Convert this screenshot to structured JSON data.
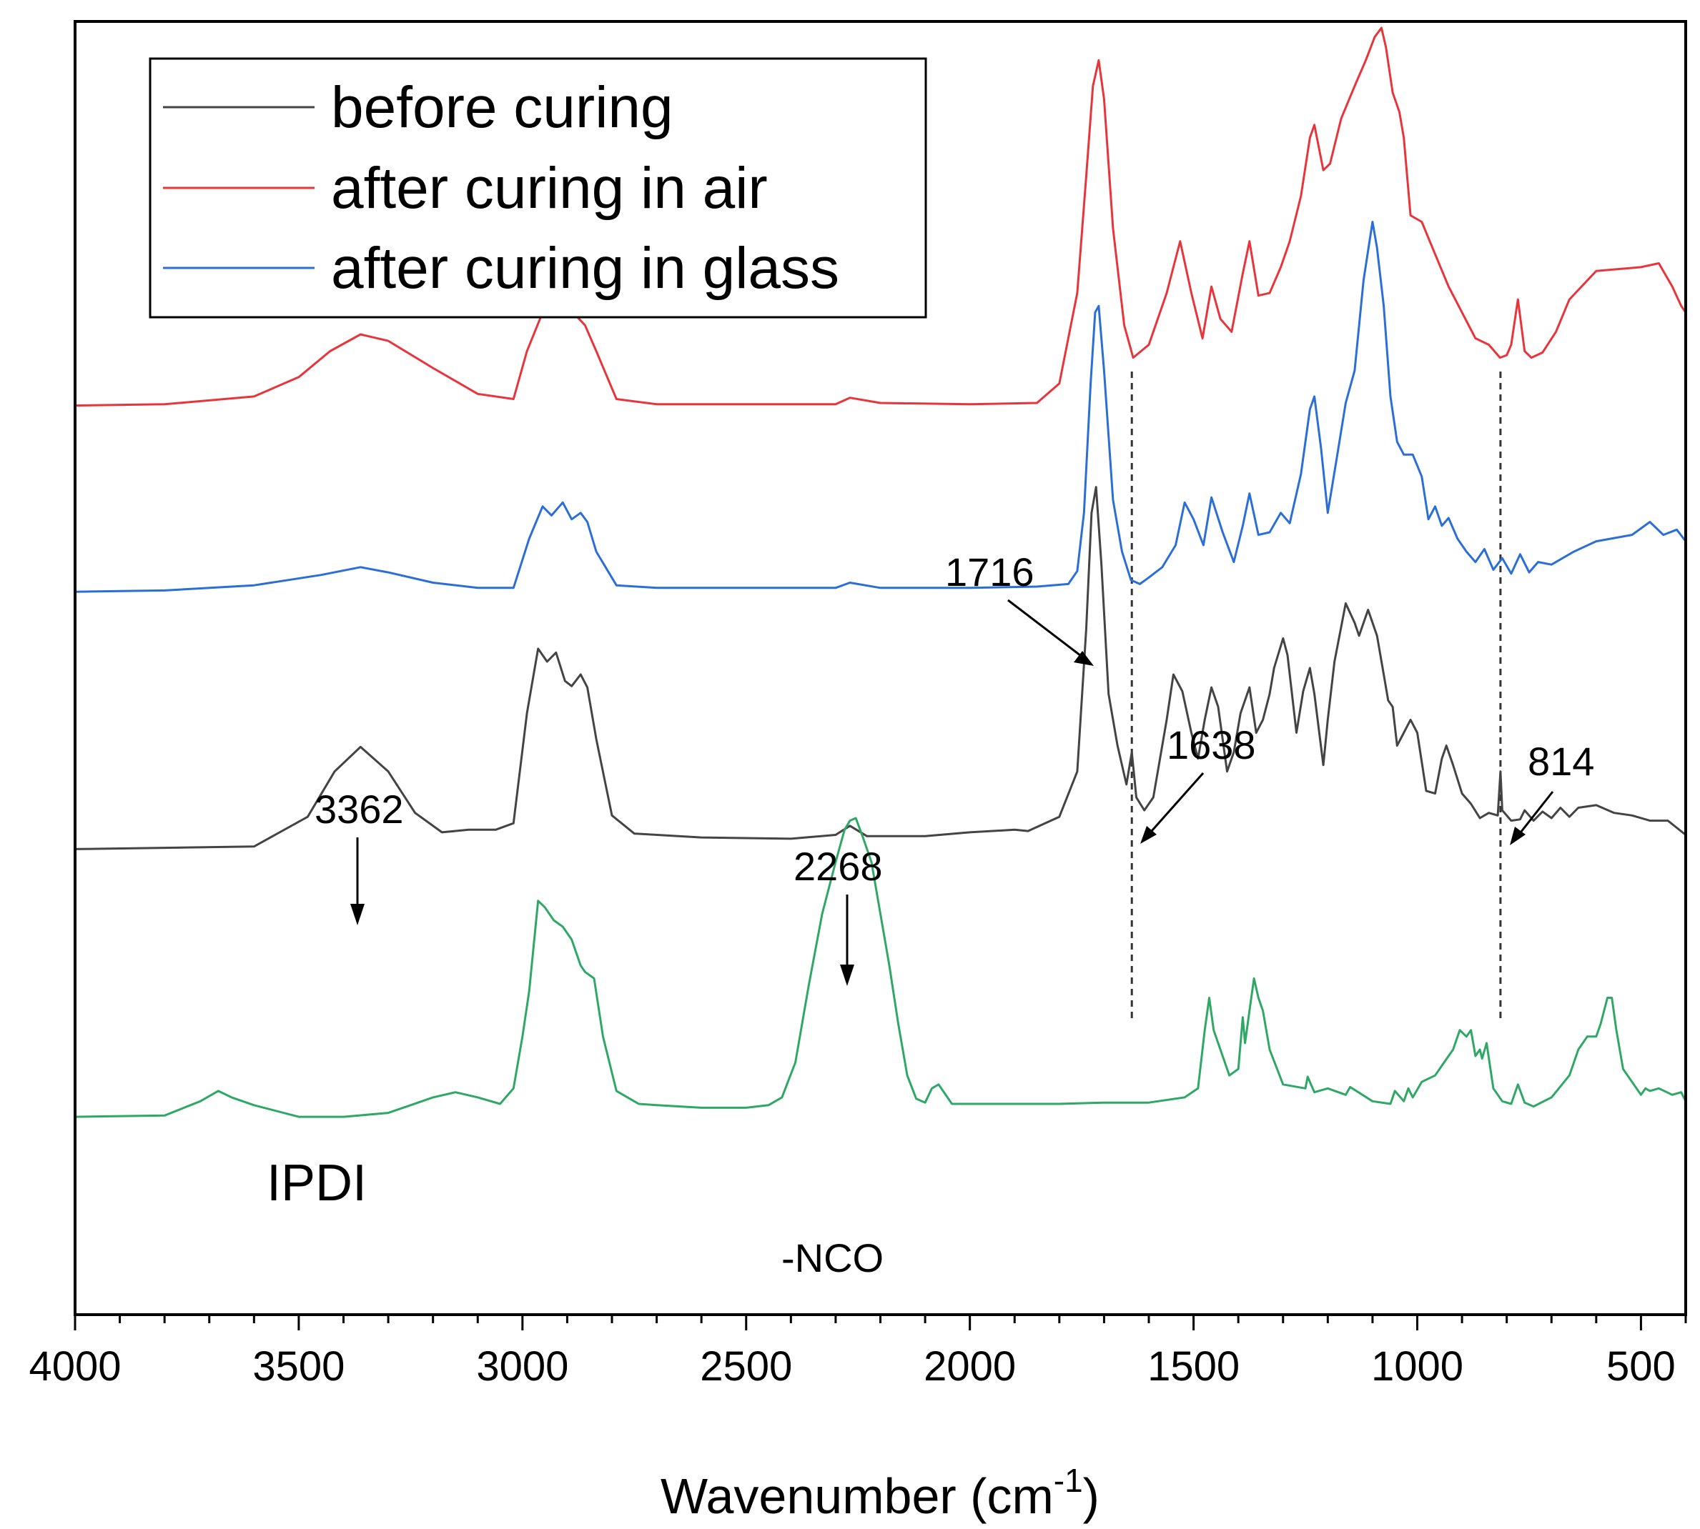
{
  "chart_data": {
    "type": "line",
    "title": "",
    "xlabel": "Wavenumber (cm",
    "xlabel_sup": "-1",
    "xlabel_close": ")",
    "ylabel": "",
    "xlim": [
      4000,
      400
    ],
    "x_reversed": true,
    "y_ticks_shown": false,
    "x_ticks": [
      4000,
      3500,
      3000,
      2500,
      2000,
      1500,
      1000,
      500
    ],
    "x_tick_labels": [
      "4000",
      "3500",
      "3000",
      "2500",
      "2000",
      "1500",
      "1000",
      "500"
    ],
    "y_range": [
      0,
      100
    ],
    "legend": {
      "position": "top-left",
      "entries": [
        {
          "label": "before curing",
          "color": "#444444"
        },
        {
          "label": "after curing in air",
          "color": "#e8353b"
        },
        {
          "label": "after curing in glass",
          "color": "#2b6fd6"
        }
      ]
    },
    "series": [
      {
        "name": "after curing in air",
        "color": "#e8353b",
        "x": [
          4000,
          3800,
          3600,
          3500,
          3430,
          3362,
          3300,
          3200,
          3100,
          3020,
          2990,
          2955,
          2925,
          2895,
          2860,
          2835,
          2790,
          2700,
          2500,
          2300,
          2268,
          2200,
          2000,
          1850,
          1800,
          1760,
          1740,
          1725,
          1712,
          1700,
          1680,
          1655,
          1635,
          1600,
          1560,
          1530,
          1505,
          1480,
          1460,
          1440,
          1415,
          1390,
          1375,
          1355,
          1330,
          1305,
          1285,
          1260,
          1240,
          1230,
          1210,
          1195,
          1170,
          1140,
          1115,
          1095,
          1080,
          1070,
          1055,
          1040,
          1030,
          1015,
          990,
          960,
          930,
          900,
          870,
          840,
          815,
          800,
          790,
          775,
          760,
          745,
          720,
          690,
          660,
          600,
          500,
          460,
          430,
          410,
          400
        ],
        "y": [
          70.3,
          70.4,
          71,
          72.5,
          74.5,
          75.8,
          75.3,
          73.2,
          71.2,
          70.8,
          74.5,
          77.5,
          79.5,
          77.8,
          76.5,
          74.5,
          70.8,
          70.4,
          70.4,
          70.4,
          70.9,
          70.5,
          70.4,
          70.5,
          72,
          79,
          88,
          95,
          97,
          94,
          84,
          76.5,
          74,
          75,
          79,
          83,
          79,
          75.5,
          79.5,
          77,
          76,
          80.5,
          83,
          78.8,
          79,
          81,
          83,
          86.5,
          91,
          92,
          88.5,
          89,
          92.5,
          95,
          97,
          98.8,
          99.5,
          98,
          94.5,
          93,
          91,
          85,
          84.5,
          82,
          79.5,
          77.5,
          75.5,
          75,
          74,
          74.2,
          75,
          78.5,
          74.5,
          74,
          74.4,
          76,
          78.5,
          80.7,
          81,
          81.3,
          79.5,
          78,
          77.5
        ]
      },
      {
        "name": "after curing in glass",
        "color": "#2b6fd6",
        "x": [
          4000,
          3800,
          3600,
          3450,
          3362,
          3300,
          3200,
          3100,
          3020,
          2985,
          2955,
          2935,
          2910,
          2890,
          2870,
          2855,
          2835,
          2790,
          2700,
          2500,
          2300,
          2268,
          2200,
          2000,
          1850,
          1780,
          1760,
          1745,
          1730,
          1720,
          1712,
          1700,
          1680,
          1660,
          1640,
          1620,
          1600,
          1570,
          1540,
          1520,
          1500,
          1478,
          1460,
          1435,
          1410,
          1390,
          1375,
          1355,
          1330,
          1305,
          1285,
          1260,
          1240,
          1230,
          1215,
          1200,
          1180,
          1160,
          1140,
          1120,
          1100,
          1090,
          1075,
          1060,
          1045,
          1030,
          1010,
          990,
          975,
          960,
          945,
          930,
          910,
          890,
          870,
          850,
          830,
          810,
          790,
          770,
          750,
          730,
          700,
          650,
          600,
          520,
          480,
          450,
          420,
          400
        ],
        "y": [
          55.9,
          56,
          56.4,
          57.2,
          57.8,
          57.4,
          56.6,
          56.2,
          56.2,
          60,
          62.5,
          61.8,
          62.8,
          61.5,
          62,
          61.3,
          59,
          56.4,
          56.2,
          56.2,
          56.2,
          56.6,
          56.2,
          56.2,
          56.3,
          56.5,
          57.5,
          62,
          72,
          77.5,
          78,
          73,
          63,
          59,
          56.8,
          56.5,
          57,
          57.8,
          59.5,
          62.8,
          61.5,
          59.5,
          63.2,
          60.5,
          58.2,
          61,
          63.5,
          60.3,
          60.5,
          62,
          61.2,
          65,
          70,
          71,
          67,
          62,
          66.2,
          70.5,
          73,
          80,
          84.5,
          82.5,
          78,
          71,
          67.5,
          66.5,
          66.5,
          64.8,
          61.5,
          62.5,
          61,
          61.6,
          60,
          59,
          58.2,
          59.2,
          57.6,
          58.5,
          57.3,
          58.8,
          57.4,
          58.2,
          58,
          59,
          59.8,
          60.3,
          61.3,
          60.3,
          60.7,
          59.8
        ]
      },
      {
        "name": "before curing",
        "color": "#444444",
        "x": [
          4000,
          3800,
          3600,
          3480,
          3420,
          3362,
          3300,
          3240,
          3180,
          3120,
          3060,
          3020,
          2990,
          2965,
          2945,
          2925,
          2905,
          2890,
          2870,
          2855,
          2835,
          2800,
          2750,
          2600,
          2400,
          2300,
          2268,
          2230,
          2100,
          2000,
          1900,
          1870,
          1800,
          1760,
          1740,
          1728,
          1718,
          1706,
          1690,
          1670,
          1650,
          1638,
          1628,
          1610,
          1590,
          1560,
          1545,
          1525,
          1505,
          1490,
          1475,
          1460,
          1445,
          1425,
          1410,
          1395,
          1375,
          1360,
          1345,
          1330,
          1320,
          1300,
          1290,
          1270,
          1255,
          1240,
          1230,
          1210,
          1200,
          1185,
          1160,
          1140,
          1130,
          1110,
          1090,
          1075,
          1065,
          1055,
          1045,
          1030,
          1015,
          1000,
          980,
          960,
          945,
          935,
          920,
          900,
          880,
          860,
          840,
          820,
          814,
          810,
          790,
          770,
          760,
          740,
          720,
          700,
          680,
          660,
          640,
          600,
          560,
          520,
          480,
          440,
          400
        ],
        "y": [
          36,
          36.1,
          36.2,
          38.5,
          42,
          43.9,
          42,
          38.8,
          37.3,
          37.5,
          37.5,
          38,
          46.5,
          51.5,
          50.5,
          51.2,
          49,
          48.6,
          49.5,
          48.5,
          44.5,
          38.6,
          37.2,
          36.9,
          36.8,
          37.1,
          37.8,
          37,
          37,
          37.3,
          37.5,
          37.4,
          38.5,
          42,
          53,
          62,
          64,
          58,
          48,
          44,
          41,
          43.5,
          40,
          39,
          40,
          46,
          49.5,
          48.2,
          45,
          43,
          46,
          48.5,
          47,
          42,
          43.5,
          46.5,
          48.5,
          45,
          46,
          48,
          50,
          52.3,
          51,
          45,
          48.2,
          50,
          48,
          42.5,
          46,
          50.5,
          55,
          53.5,
          52.5,
          54.5,
          52.5,
          49.5,
          47.5,
          47,
          44,
          45,
          46,
          45,
          40.5,
          40.3,
          43,
          44,
          42.5,
          40.3,
          39.5,
          38.4,
          38.8,
          38.6,
          42,
          39,
          38.2,
          38.3,
          39,
          38.2,
          38.9,
          38.4,
          39.2,
          38.5,
          39.2,
          39.4,
          38.8,
          38.6,
          38.2,
          38.2,
          37.1
        ]
      },
      {
        "name": "IPDI",
        "color": "#2fa865",
        "x": [
          4000,
          3800,
          3720,
          3680,
          3650,
          3600,
          3500,
          3400,
          3300,
          3250,
          3200,
          3150,
          3100,
          3050,
          3020,
          3000,
          2985,
          2965,
          2950,
          2930,
          2910,
          2890,
          2870,
          2860,
          2840,
          2820,
          2790,
          2740,
          2700,
          2600,
          2500,
          2450,
          2420,
          2390,
          2360,
          2330,
          2300,
          2280,
          2268,
          2255,
          2240,
          2220,
          2200,
          2180,
          2160,
          2140,
          2120,
          2100,
          2085,
          2070,
          2040,
          2000,
          1900,
          1800,
          1700,
          1600,
          1520,
          1490,
          1475,
          1465,
          1455,
          1440,
          1420,
          1400,
          1395,
          1390,
          1385,
          1375,
          1365,
          1355,
          1345,
          1330,
          1300,
          1250,
          1245,
          1230,
          1200,
          1160,
          1150,
          1100,
          1060,
          1050,
          1030,
          1020,
          1010,
          990,
          960,
          940,
          920,
          905,
          890,
          880,
          870,
          860,
          855,
          845,
          830,
          810,
          790,
          775,
          760,
          740,
          700,
          660,
          640,
          620,
          600,
          590,
          575,
          565,
          555,
          540,
          520,
          500,
          490,
          480,
          460,
          430,
          410,
          400
        ],
        "y": [
          15.3,
          15.4,
          16.5,
          17.3,
          16.8,
          16.2,
          15.3,
          15.3,
          15.6,
          16.2,
          16.8,
          17.2,
          16.8,
          16.3,
          17.5,
          21.5,
          25,
          32,
          31.5,
          30.5,
          30,
          29,
          27,
          26.5,
          26,
          21.5,
          17.3,
          16.3,
          16.2,
          16,
          16,
          16.2,
          16.8,
          19.5,
          25.5,
          31,
          35,
          37.5,
          38.2,
          38.4,
          37,
          35,
          31,
          27,
          22.5,
          18.5,
          16.7,
          16.4,
          17.5,
          17.8,
          16.3,
          16.3,
          16.3,
          16.3,
          16.4,
          16.4,
          16.8,
          17.5,
          22,
          24.5,
          22,
          20.5,
          18.5,
          19,
          21,
          23,
          21,
          23.5,
          26,
          24.5,
          23.5,
          20.5,
          17.8,
          17.5,
          18.4,
          17.2,
          17.5,
          17,
          17.6,
          16.5,
          16.3,
          17.3,
          16.5,
          17.5,
          16.8,
          18,
          18.5,
          19.5,
          20.5,
          22,
          21.5,
          22,
          20,
          20.5,
          19.8,
          21,
          17.5,
          16.5,
          16.3,
          17.8,
          16.4,
          16.1,
          16.8,
          18.5,
          20.5,
          21.5,
          21.5,
          22.5,
          24.5,
          24.5,
          22,
          19,
          18,
          17,
          17.5,
          17.3,
          17.5,
          17,
          17.2,
          16.5
        ]
      }
    ],
    "annotations": [
      {
        "text": "1716",
        "arrow_to": [
          1716,
          64.5
        ]
      },
      {
        "text": "1638",
        "arrow_to": [
          1638,
          45
        ]
      },
      {
        "text": "3362",
        "arrow_to": [
          3362,
          44.5
        ]
      },
      {
        "text": "2268",
        "arrow_to": [
          2268,
          38
        ]
      },
      {
        "text": "814",
        "arrow_to": [
          814,
          42
        ]
      },
      {
        "text": "-NCO"
      },
      {
        "text": "IPDI"
      }
    ],
    "reference_lines": [
      1638,
      814
    ]
  }
}
